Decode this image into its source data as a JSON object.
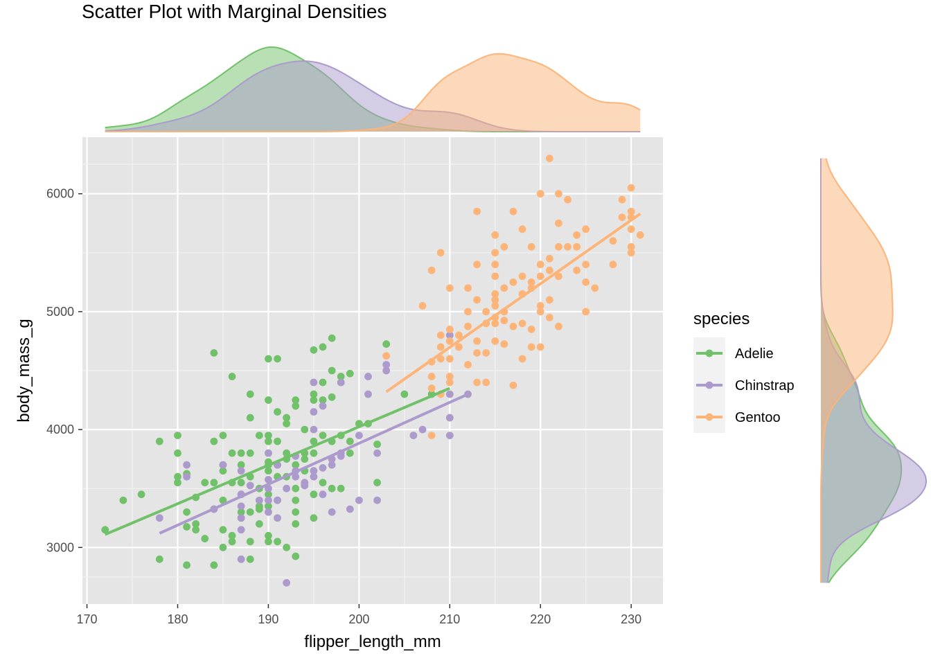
{
  "chart_data": {
    "type": "scatter",
    "title": "Scatter Plot with Marginal Densities",
    "xlabel": "flipper_length_mm",
    "ylabel": "body_mass_g",
    "xlim": [
      169.5,
      233.5
    ],
    "ylim": [
      2520,
      6480
    ],
    "x_ticks": [
      170,
      180,
      190,
      200,
      210,
      220,
      230
    ],
    "y_ticks": [
      3000,
      4000,
      5000,
      6000
    ],
    "grid": true,
    "legend": {
      "title": "species",
      "placement": "right"
    },
    "series": [
      {
        "name": "Adelie",
        "color": "#71c16a",
        "fill": "#b5dfb0",
        "trend": [
          [
            172,
            3110
          ],
          [
            210,
            4350
          ]
        ],
        "points": [
          [
            172,
            3150
          ],
          [
            174,
            3400
          ],
          [
            176,
            3450
          ],
          [
            178,
            2900
          ],
          [
            178,
            3900
          ],
          [
            180,
            3950
          ],
          [
            180,
            3800
          ],
          [
            180,
            3600
          ],
          [
            180,
            3550
          ],
          [
            181,
            3300
          ],
          [
            181,
            3175
          ],
          [
            181,
            2850
          ],
          [
            181,
            3625
          ],
          [
            182,
            3200
          ],
          [
            182,
            3150
          ],
          [
            182,
            3425
          ],
          [
            183,
            3075
          ],
          [
            183,
            3550
          ],
          [
            184,
            4650
          ],
          [
            184,
            3550
          ],
          [
            184,
            3325
          ],
          [
            184,
            2850
          ],
          [
            184,
            3900
          ],
          [
            185,
            3950
          ],
          [
            185,
            3700
          ],
          [
            185,
            3400
          ],
          [
            185,
            3650
          ],
          [
            185,
            3150
          ],
          [
            185,
            3000
          ],
          [
            186,
            4450
          ],
          [
            186,
            3800
          ],
          [
            186,
            3550
          ],
          [
            186,
            3100
          ],
          [
            186,
            3050
          ],
          [
            187,
            3800
          ],
          [
            187,
            3700
          ],
          [
            187,
            3550
          ],
          [
            187,
            3450
          ],
          [
            187,
            3300
          ],
          [
            187,
            3250
          ],
          [
            188,
            3800
          ],
          [
            188,
            4300
          ],
          [
            188,
            4100
          ],
          [
            188,
            3600
          ],
          [
            188,
            3300
          ],
          [
            188,
            3050
          ],
          [
            188,
            2900
          ],
          [
            189,
            3950
          ],
          [
            189,
            3350
          ],
          [
            189,
            3325
          ],
          [
            189,
            3200
          ],
          [
            189,
            3500
          ],
          [
            190,
            4600
          ],
          [
            190,
            4250
          ],
          [
            190,
            3950
          ],
          [
            190,
            3900
          ],
          [
            190,
            3800
          ],
          [
            190,
            3725
          ],
          [
            190,
            3700
          ],
          [
            190,
            3650
          ],
          [
            190,
            3450
          ],
          [
            190,
            3350
          ],
          [
            190,
            3100
          ],
          [
            190,
            3050
          ],
          [
            191,
            4600
          ],
          [
            191,
            4150
          ],
          [
            191,
            3900
          ],
          [
            191,
            3700
          ],
          [
            191,
            3600
          ],
          [
            191,
            3400
          ],
          [
            191,
            3050
          ],
          [
            192,
            4100
          ],
          [
            192,
            4050
          ],
          [
            192,
            3800
          ],
          [
            192,
            3750
          ],
          [
            192,
            3600
          ],
          [
            192,
            3000
          ],
          [
            193,
            4250
          ],
          [
            193,
            4200
          ],
          [
            193,
            3700
          ],
          [
            193,
            3500
          ],
          [
            193,
            3400
          ],
          [
            193,
            3300
          ],
          [
            193,
            3200
          ],
          [
            193,
            2925
          ],
          [
            194,
            4000
          ],
          [
            194,
            3800
          ],
          [
            194,
            3750
          ],
          [
            194,
            3650
          ],
          [
            195,
            4675
          ],
          [
            195,
            4300
          ],
          [
            195,
            4250
          ],
          [
            195,
            3900
          ],
          [
            195,
            3800
          ],
          [
            195,
            3450
          ],
          [
            195,
            3250
          ],
          [
            196,
            4700
          ],
          [
            196,
            4400
          ],
          [
            196,
            4250
          ],
          [
            196,
            3950
          ],
          [
            196,
            3550
          ],
          [
            197,
            4775
          ],
          [
            197,
            4500
          ],
          [
            197,
            4275
          ],
          [
            197,
            3900
          ],
          [
            197,
            3500
          ],
          [
            198,
            4450
          ],
          [
            198,
            4400
          ],
          [
            198,
            3950
          ],
          [
            198,
            3500
          ],
          [
            199,
            4475
          ],
          [
            199,
            3900
          ],
          [
            199,
            3800
          ],
          [
            200,
            4050
          ],
          [
            201,
            4050
          ],
          [
            202,
            3875
          ],
          [
            202,
            3550
          ],
          [
            203,
            4725
          ],
          [
            205,
            4300
          ],
          [
            208,
            4300
          ]
        ]
      },
      {
        "name": "Chinstrap",
        "color": "#ab9acb",
        "fill": "#d9d0e8",
        "trend": [
          [
            178,
            3120
          ],
          [
            212,
            4300
          ]
        ],
        "points": [
          [
            178,
            3250
          ],
          [
            181,
            3700
          ],
          [
            181,
            3600
          ],
          [
            184,
            3325
          ],
          [
            185,
            3700
          ],
          [
            187,
            3650
          ],
          [
            187,
            3450
          ],
          [
            187,
            3350
          ],
          [
            187,
            3250
          ],
          [
            187,
            3150
          ],
          [
            187,
            2900
          ],
          [
            188,
            3525
          ],
          [
            189,
            3400
          ],
          [
            190,
            3800
          ],
          [
            190,
            3575
          ],
          [
            190,
            3500
          ],
          [
            190,
            3300
          ],
          [
            190,
            3400
          ],
          [
            191,
            3700
          ],
          [
            191,
            3250
          ],
          [
            191,
            3400
          ],
          [
            192,
            3500
          ],
          [
            192,
            2700
          ],
          [
            193,
            3775
          ],
          [
            193,
            3650
          ],
          [
            193,
            3600
          ],
          [
            194,
            3525
          ],
          [
            194,
            3550
          ],
          [
            195,
            4400
          ],
          [
            195,
            4150
          ],
          [
            195,
            4000
          ],
          [
            195,
            3650
          ],
          [
            195,
            3600
          ],
          [
            196,
            4200
          ],
          [
            196,
            3675
          ],
          [
            196,
            3450
          ],
          [
            197,
            3750
          ],
          [
            197,
            3700
          ],
          [
            197,
            3300
          ],
          [
            198,
            4400
          ],
          [
            198,
            3800
          ],
          [
            198,
            3775
          ],
          [
            199,
            3325
          ],
          [
            200,
            3950
          ],
          [
            200,
            3400
          ],
          [
            201,
            4450
          ],
          [
            201,
            4300
          ],
          [
            202,
            3800
          ],
          [
            202,
            3400
          ],
          [
            203,
            4550
          ],
          [
            203,
            4500
          ],
          [
            206,
            3950
          ],
          [
            207,
            4000
          ],
          [
            210,
            4800
          ],
          [
            210,
            4100
          ],
          [
            210,
            3950
          ],
          [
            210,
            4300
          ],
          [
            212,
            4300
          ]
        ]
      },
      {
        "name": "Gentoo",
        "color": "#fcb478",
        "fill": "#fdd7b5",
        "trend": [
          [
            203,
            4320
          ],
          [
            231,
            5830
          ]
        ],
        "points": [
          [
            203,
            4625
          ],
          [
            207,
            5050
          ],
          [
            208,
            3950
          ],
          [
            208,
            4350
          ],
          [
            208,
            4450
          ],
          [
            208,
            4575
          ],
          [
            208,
            5350
          ],
          [
            209,
            5500
          ],
          [
            209,
            4700
          ],
          [
            209,
            4600
          ],
          [
            209,
            4300
          ],
          [
            209,
            4800
          ],
          [
            210,
            4850
          ],
          [
            210,
            4750
          ],
          [
            210,
            4600
          ],
          [
            210,
            4450
          ],
          [
            210,
            4400
          ],
          [
            210,
            5200
          ],
          [
            211,
            4800
          ],
          [
            211,
            4700
          ],
          [
            212,
            5000
          ],
          [
            212,
            4875
          ],
          [
            212,
            4550
          ],
          [
            212,
            5200
          ],
          [
            213,
            5850
          ],
          [
            213,
            5400
          ],
          [
            213,
            5100
          ],
          [
            213,
            4750
          ],
          [
            213,
            4650
          ],
          [
            213,
            4400
          ],
          [
            214,
            4900
          ],
          [
            214,
            4650
          ],
          [
            214,
            4400
          ],
          [
            214,
            5000
          ],
          [
            215,
            5650
          ],
          [
            215,
            5500
          ],
          [
            215,
            5400
          ],
          [
            215,
            5300
          ],
          [
            215,
            5150
          ],
          [
            215,
            5100
          ],
          [
            215,
            5050
          ],
          [
            215,
            4950
          ],
          [
            215,
            4750
          ],
          [
            215,
            4900
          ],
          [
            216,
            5550
          ],
          [
            216,
            5000
          ],
          [
            216,
            4925
          ],
          [
            216,
            4725
          ],
          [
            216,
            5200
          ],
          [
            217,
            5850
          ],
          [
            217,
            5250
          ],
          [
            217,
            4875
          ],
          [
            217,
            4375
          ],
          [
            218,
            5700
          ],
          [
            218,
            5300
          ],
          [
            218,
            5150
          ],
          [
            218,
            4900
          ],
          [
            218,
            4600
          ],
          [
            219,
            5550
          ],
          [
            219,
            5250
          ],
          [
            219,
            5200
          ],
          [
            219,
            4850
          ],
          [
            219,
            4700
          ],
          [
            220,
            6000
          ],
          [
            220,
            5400
          ],
          [
            220,
            5300
          ],
          [
            220,
            5000
          ],
          [
            220,
            5050
          ],
          [
            220,
            4700
          ],
          [
            221,
            6300
          ],
          [
            221,
            5450
          ],
          [
            221,
            5350
          ],
          [
            221,
            5100
          ],
          [
            221,
            4950
          ],
          [
            222,
            6000
          ],
          [
            222,
            5750
          ],
          [
            222,
            5550
          ],
          [
            222,
            5300
          ],
          [
            222,
            4875
          ],
          [
            223,
            5950
          ],
          [
            223,
            5550
          ],
          [
            224,
            5650
          ],
          [
            224,
            5350
          ],
          [
            224,
            5550
          ],
          [
            225,
            5700
          ],
          [
            225,
            5400
          ],
          [
            225,
            5250
          ],
          [
            225,
            5000
          ],
          [
            226,
            5200
          ],
          [
            228,
            5600
          ],
          [
            228,
            5400
          ],
          [
            229,
            5950
          ],
          [
            229,
            5800
          ],
          [
            230,
            6050
          ],
          [
            230,
            5850
          ],
          [
            230,
            5800
          ],
          [
            230,
            5700
          ],
          [
            230,
            5550
          ],
          [
            230,
            5500
          ],
          [
            231,
            5650
          ]
        ]
      }
    ]
  }
}
